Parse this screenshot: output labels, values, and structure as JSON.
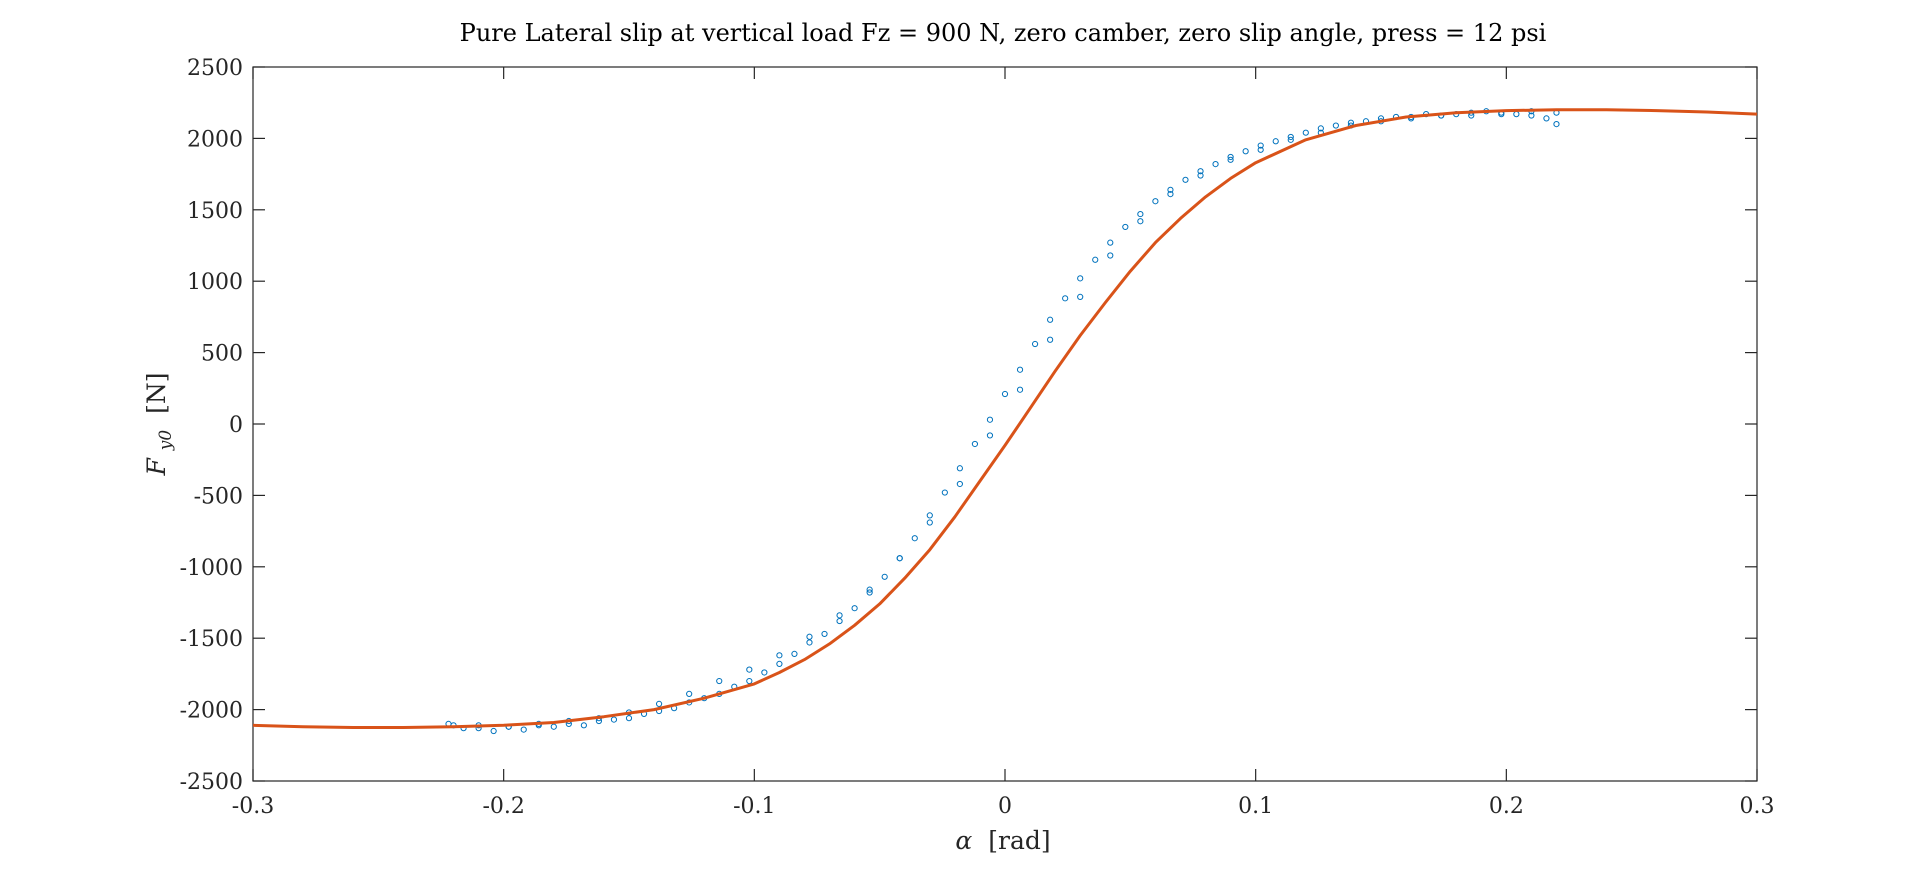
{
  "chart_data": {
    "type": "scatter",
    "title": "Pure Lateral slip at vertical load Fz = 900 N, zero camber, zero slip angle, press = 12 psi",
    "xlabel": {
      "symbol": "α",
      "unit": "[rad]"
    },
    "ylabel": {
      "symbol": "F",
      "subscript": "y0",
      "unit": "[N]"
    },
    "xlim": [
      -0.3,
      0.3
    ],
    "ylim": [
      -2500,
      2500
    ],
    "xticks": [
      -0.3,
      -0.2,
      -0.1,
      0,
      0.1,
      0.2,
      0.3
    ],
    "xtick_labels": [
      "-0.3",
      "-0.2",
      "-0.1",
      "0",
      "0.1",
      "0.2",
      "0.3"
    ],
    "yticks": [
      -2500,
      -2000,
      -1500,
      -1000,
      -500,
      0,
      500,
      1000,
      1500,
      2000,
      2500
    ],
    "ytick_labels": [
      "-2500",
      "-2000",
      "-1500",
      "-1000",
      "-500",
      "0",
      "500",
      "1000",
      "1500",
      "2000",
      "2500"
    ],
    "grid": false,
    "series": [
      {
        "kind": "scatter",
        "marker": "circle-open",
        "color": "#0072BD",
        "x": [
          -0.222,
          -0.216,
          -0.21,
          -0.204,
          -0.198,
          -0.192,
          -0.186,
          -0.18,
          -0.174,
          -0.168,
          -0.162,
          -0.156,
          -0.15,
          -0.144,
          -0.138,
          -0.132,
          -0.126,
          -0.12,
          -0.114,
          -0.108,
          -0.102,
          -0.096,
          -0.09,
          -0.084,
          -0.078,
          -0.072,
          -0.066,
          -0.06,
          -0.054,
          -0.048,
          -0.042,
          -0.036,
          -0.03,
          -0.024,
          -0.018,
          -0.012,
          -0.006,
          0.0,
          0.006,
          0.012,
          0.018,
          0.024,
          0.03,
          0.036,
          0.042,
          0.048,
          0.054,
          0.06,
          0.066,
          0.072,
          0.078,
          0.084,
          0.09,
          0.096,
          0.102,
          0.108,
          0.114,
          0.12,
          0.126,
          0.132,
          0.138,
          0.144,
          0.15,
          0.156,
          0.162,
          0.168,
          0.174,
          0.18,
          0.186,
          0.192,
          0.198,
          0.204,
          0.21,
          0.216,
          0.22,
          0.22,
          0.21,
          0.198,
          0.186,
          0.174,
          0.162,
          0.15,
          0.138,
          0.126,
          0.114,
          0.102,
          0.09,
          0.078,
          0.066,
          0.054,
          0.042,
          0.03,
          0.018,
          0.006,
          -0.006,
          -0.018,
          -0.03,
          -0.042,
          -0.054,
          -0.066,
          -0.078,
          -0.09,
          -0.102,
          -0.114,
          -0.126,
          -0.138,
          -0.15,
          -0.162,
          -0.174,
          -0.186,
          -0.198,
          -0.21,
          -0.22
        ],
        "y": [
          -2100,
          -2130,
          -2110,
          -2150,
          -2120,
          -2140,
          -2110,
          -2120,
          -2100,
          -2110,
          -2080,
          -2070,
          -2060,
          -2030,
          -2010,
          -1990,
          -1950,
          -1920,
          -1890,
          -1840,
          -1800,
          -1740,
          -1680,
          -1610,
          -1530,
          -1470,
          -1380,
          -1290,
          -1180,
          -1070,
          -940,
          -800,
          -640,
          -480,
          -310,
          -140,
          30,
          210,
          380,
          560,
          730,
          880,
          1020,
          1150,
          1270,
          1380,
          1470,
          1560,
          1640,
          1710,
          1770,
          1820,
          1870,
          1910,
          1950,
          1980,
          2010,
          2040,
          2070,
          2090,
          2110,
          2120,
          2140,
          2150,
          2150,
          2170,
          2160,
          2170,
          2180,
          2190,
          2180,
          2170,
          2160,
          2140,
          2100,
          2180,
          2190,
          2170,
          2160,
          2160,
          2140,
          2120,
          2090,
          2040,
          1990,
          1920,
          1850,
          1740,
          1610,
          1420,
          1180,
          890,
          590,
          240,
          -80,
          -420,
          -690,
          -940,
          -1160,
          -1340,
          -1490,
          -1620,
          -1720,
          -1800,
          -1890,
          -1960,
          -2020,
          -2060,
          -2080,
          -2100,
          -2120,
          -2130,
          -2110
        ]
      },
      {
        "kind": "line",
        "color": "#D95319",
        "x": [
          -0.3,
          -0.28,
          -0.26,
          -0.24,
          -0.22,
          -0.2,
          -0.18,
          -0.16,
          -0.14,
          -0.12,
          -0.1,
          -0.09,
          -0.08,
          -0.07,
          -0.06,
          -0.05,
          -0.04,
          -0.03,
          -0.02,
          -0.01,
          0.0,
          0.01,
          0.02,
          0.03,
          0.04,
          0.05,
          0.06,
          0.07,
          0.08,
          0.09,
          0.1,
          0.12,
          0.14,
          0.16,
          0.18,
          0.2,
          0.22,
          0.24,
          0.26,
          0.28,
          0.3
        ],
        "y": [
          -2110,
          -2120,
          -2125,
          -2125,
          -2120,
          -2110,
          -2090,
          -2050,
          -2000,
          -1920,
          -1820,
          -1740,
          -1650,
          -1540,
          -1410,
          -1260,
          -1080,
          -880,
          -650,
          -400,
          -150,
          110,
          370,
          620,
          850,
          1070,
          1270,
          1440,
          1590,
          1720,
          1830,
          1990,
          2090,
          2150,
          2180,
          2195,
          2200,
          2200,
          2195,
          2185,
          2170
        ]
      }
    ]
  }
}
